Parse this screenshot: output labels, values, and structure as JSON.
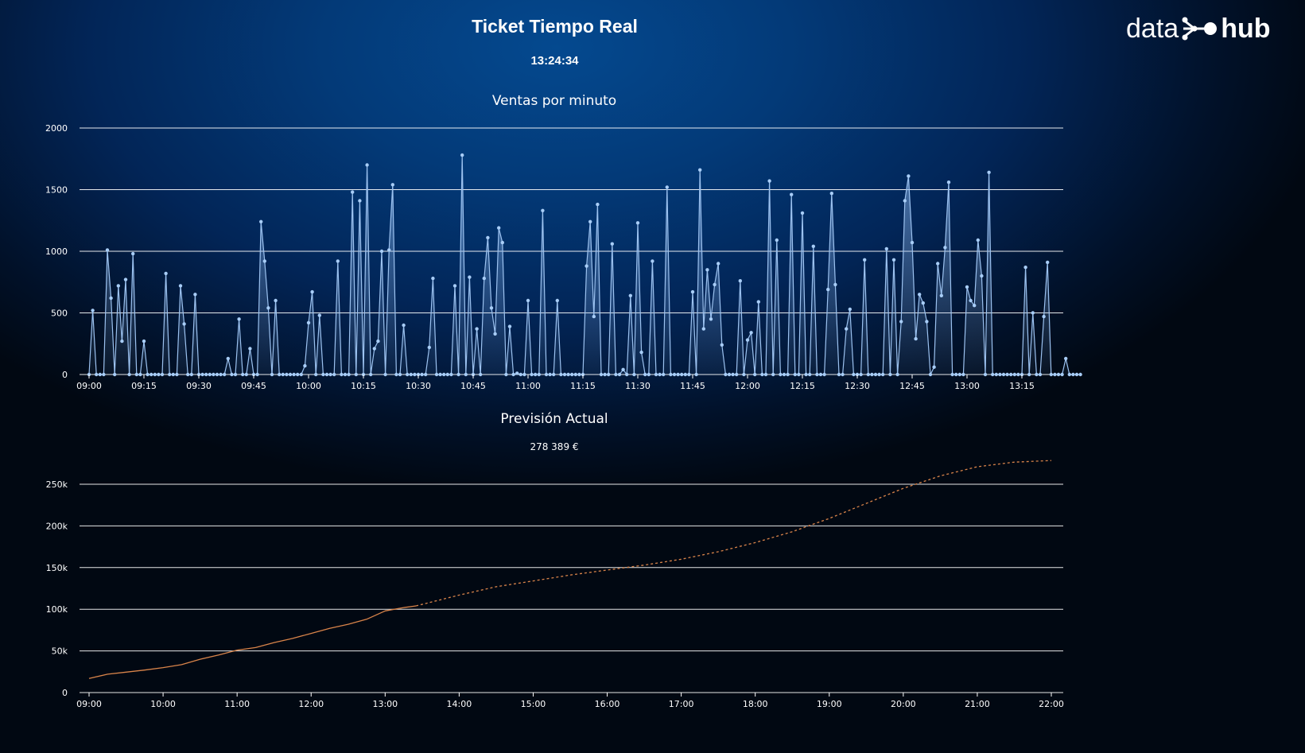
{
  "header": {
    "title": "Ticket Tiempo Real",
    "clock": "13:24:34"
  },
  "logo": {
    "word_left": "data",
    "word_right": "hub",
    "mark_icon": "hub-nodes-icon"
  },
  "colors": {
    "sales_line": "#9cc2f0",
    "sales_point": "#a8cdf7",
    "forecast_line": "#d9844a",
    "grid": "#ffffff"
  },
  "chart_data": [
    {
      "type": "area",
      "title": "Ventas por minuto",
      "xlabel": "",
      "ylabel": "",
      "x_start": "09:00",
      "x_step_minutes": 1,
      "x_ticks": [
        "09:00",
        "09:15",
        "09:30",
        "09:45",
        "10:00",
        "10:15",
        "10:30",
        "10:45",
        "11:00",
        "11:15",
        "11:30",
        "11:45",
        "12:00",
        "12:15",
        "12:30",
        "12:45",
        "13:00",
        "13:15"
      ],
      "ylim": [
        0,
        2000
      ],
      "y_ticks": [
        0,
        500,
        1000,
        1500,
        2000
      ],
      "grid": true,
      "legend": "none",
      "values": [
        0,
        520,
        0,
        0,
        0,
        1010,
        620,
        0,
        720,
        270,
        770,
        0,
        980,
        0,
        0,
        270,
        0,
        0,
        0,
        0,
        0,
        820,
        0,
        0,
        0,
        720,
        410,
        0,
        0,
        650,
        0,
        0,
        0,
        0,
        0,
        0,
        0,
        0,
        130,
        0,
        0,
        450,
        0,
        0,
        210,
        0,
        0,
        1240,
        920,
        540,
        0,
        600,
        0,
        0,
        0,
        0,
        0,
        0,
        0,
        70,
        420,
        670,
        0,
        480,
        0,
        0,
        0,
        0,
        920,
        0,
        0,
        0,
        1480,
        0,
        1410,
        0,
        1700,
        0,
        210,
        270,
        1000,
        0,
        1010,
        1540,
        0,
        0,
        400,
        0,
        0,
        0,
        0,
        0,
        0,
        220,
        780,
        0,
        0,
        0,
        0,
        0,
        720,
        0,
        1780,
        0,
        790,
        0,
        370,
        0,
        780,
        1110,
        540,
        330,
        1190,
        1070,
        0,
        390,
        0,
        10,
        0,
        0,
        600,
        0,
        0,
        0,
        1330,
        0,
        0,
        0,
        600,
        0,
        0,
        0,
        0,
        0,
        0,
        0,
        880,
        1240,
        470,
        1380,
        0,
        0,
        0,
        1060,
        0,
        0,
        40,
        0,
        640,
        0,
        1230,
        180,
        0,
        0,
        920,
        0,
        0,
        0,
        1520,
        0,
        0,
        0,
        0,
        0,
        0,
        670,
        0,
        1660,
        370,
        850,
        450,
        730,
        900,
        240,
        0,
        0,
        0,
        0,
        760,
        0,
        280,
        340,
        0,
        590,
        0,
        0,
        1570,
        0,
        1090,
        0,
        0,
        0,
        1460,
        0,
        0,
        1310,
        0,
        0,
        1040,
        0,
        0,
        0,
        690,
        1470,
        730,
        0,
        0,
        370,
        530,
        0,
        0,
        0,
        930,
        0,
        0,
        0,
        0,
        0,
        1020,
        0,
        930,
        0,
        430,
        1410,
        1610,
        1070,
        290,
        650,
        580,
        430,
        0,
        60,
        900,
        640,
        1030,
        1560,
        0,
        0,
        0,
        0,
        710,
        600,
        560,
        1090,
        800,
        0,
        1640,
        0,
        0,
        0,
        0,
        0,
        0,
        0,
        0,
        0,
        870,
        0,
        500,
        0,
        0,
        470,
        910,
        0,
        0,
        0,
        0,
        130,
        0,
        0,
        0,
        0
      ]
    },
    {
      "type": "line",
      "title": "Previsión Actual",
      "subtitle": "278 389 €",
      "xlabel": "",
      "ylabel": "",
      "x_ticks": [
        "09:00",
        "10:00",
        "11:00",
        "12:00",
        "13:00",
        "14:00",
        "15:00",
        "16:00",
        "17:00",
        "18:00",
        "19:00",
        "20:00",
        "21:00",
        "22:00"
      ],
      "ylim": [
        0,
        280000
      ],
      "y_ticks": [
        "0",
        "50k",
        "100k",
        "150k",
        "200k",
        "250k"
      ],
      "y_tick_values": [
        0,
        50000,
        100000,
        150000,
        200000,
        250000
      ],
      "grid": true,
      "legend": "none",
      "series": [
        {
          "line_style": "solid",
          "x": [
            "09:00",
            "09:15",
            "09:30",
            "09:45",
            "10:00",
            "10:15",
            "10:30",
            "10:45",
            "11:00",
            "11:15",
            "11:30",
            "11:45",
            "12:00",
            "12:15",
            "12:30",
            "12:45",
            "13:00",
            "13:15",
            "13:25"
          ],
          "values": [
            17000,
            22000,
            24500,
            27000,
            30000,
            33500,
            40000,
            45000,
            51000,
            54000,
            60000,
            65000,
            71000,
            77000,
            82000,
            88000,
            98000,
            102000,
            104000
          ]
        },
        {
          "line_style": "dashed",
          "x": [
            "13:25",
            "14:00",
            "14:30",
            "15:00",
            "15:30",
            "16:00",
            "16:30",
            "17:00",
            "17:30",
            "18:00",
            "18:30",
            "19:00",
            "19:30",
            "20:00",
            "20:30",
            "21:00",
            "21:30",
            "22:00"
          ],
          "values": [
            104000,
            117000,
            127000,
            134000,
            141000,
            147000,
            153000,
            160000,
            169000,
            180000,
            193000,
            209000,
            227000,
            245000,
            260000,
            271000,
            276500,
            278389
          ]
        }
      ]
    }
  ]
}
